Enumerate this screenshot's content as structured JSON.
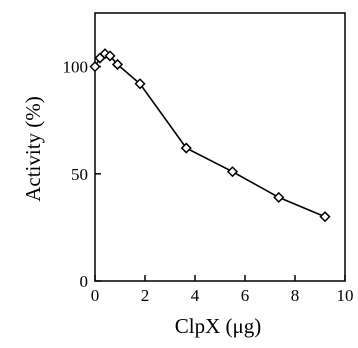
{
  "chart_data": {
    "type": "line",
    "title": "",
    "xlabel": "ClpX (μg)",
    "ylabel": "Activity (%)",
    "xlim": [
      0,
      10
    ],
    "ylim": [
      0,
      125
    ],
    "xticks": [
      0,
      2,
      4,
      6,
      8,
      10
    ],
    "yticks": [
      0,
      50,
      100
    ],
    "xtick_labels": [
      "0",
      "2",
      "4",
      "6",
      "8",
      "10"
    ],
    "ytick_labels": [
      "0",
      "50",
      "100"
    ],
    "grid": false,
    "legend": "none",
    "marker": "diamond",
    "series": [
      {
        "x": [
          0,
          0.2,
          0.4,
          0.6,
          0.9,
          1.8,
          3.65,
          5.5,
          7.35,
          9.2
        ],
        "y": [
          100,
          104,
          106,
          105,
          101,
          92,
          62,
          51,
          39,
          30
        ]
      }
    ]
  }
}
